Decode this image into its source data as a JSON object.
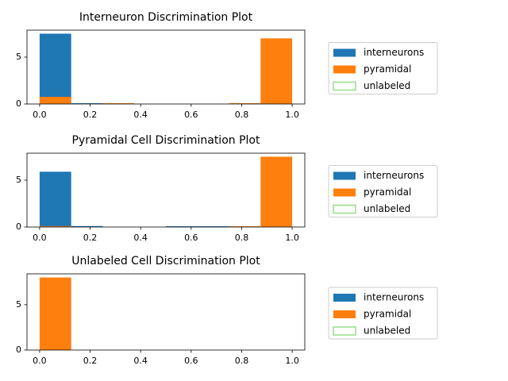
{
  "chart_data": [
    {
      "type": "histogram",
      "title": "Interneuron Discrimination Plot",
      "bins": [
        0,
        0.125,
        0.25,
        0.375,
        0.5,
        0.625,
        0.75,
        0.875,
        1
      ],
      "series": [
        {
          "name": "interneurons",
          "color": "#1f77b4",
          "values": [
            7.5,
            0.08,
            0,
            0,
            0,
            0,
            0,
            0
          ]
        },
        {
          "name": "pyramidal",
          "color": "#ff7f0e",
          "values": [
            0.76,
            0,
            0.08,
            0,
            0,
            0,
            0.08,
            7
          ]
        },
        {
          "name": "unlabeled",
          "color": "#98df8a",
          "values": [
            0,
            0,
            0,
            0,
            0,
            0,
            0,
            0
          ]
        }
      ],
      "xlim": [
        -0.05,
        1.05
      ],
      "ylim": [
        0,
        7.875
      ],
      "xticks": [
        {
          "value": 0,
          "label": "0.0"
        },
        0.2,
        0.4,
        0.6,
        0.8,
        {
          "value": 1,
          "label": "1.0"
        }
      ],
      "yticks": [
        0,
        5
      ],
      "legend": "right"
    },
    {
      "type": "histogram",
      "title": "Pyramidal Cell Discrimination Plot",
      "bins": [
        0,
        0.125,
        0.25,
        0.375,
        0.5,
        0.625,
        0.75,
        0.875,
        1
      ],
      "series": [
        {
          "name": "interneurons",
          "color": "#1f77b4",
          "values": [
            5.9,
            0.1,
            0,
            0,
            0.08,
            0.08,
            0,
            0
          ]
        },
        {
          "name": "pyramidal",
          "color": "#ff7f0e",
          "values": [
            0.1,
            0,
            0,
            0,
            0,
            0,
            0.08,
            7.5
          ]
        },
        {
          "name": "unlabeled",
          "color": "#98df8a",
          "values": [
            0,
            0,
            0,
            0,
            0,
            0,
            0,
            0
          ]
        }
      ],
      "xlim": [
        -0.05,
        1.05
      ],
      "ylim": [
        0,
        7.875
      ],
      "xticks": [
        {
          "value": 0,
          "label": "0.0"
        },
        0.2,
        0.4,
        0.6,
        0.8,
        {
          "value": 1,
          "label": "1.0"
        }
      ],
      "yticks": [
        0,
        5
      ],
      "legend": "right"
    },
    {
      "type": "histogram",
      "title": "Unlabeled Cell Discrimination Plot",
      "bins": [
        0,
        0.125,
        0.25,
        0.375,
        0.5,
        0.625,
        0.75,
        0.875,
        1
      ],
      "series": [
        {
          "name": "interneurons",
          "color": "#1f77b4",
          "values": [
            0,
            0,
            0,
            0,
            0,
            0,
            0,
            0
          ]
        },
        {
          "name": "pyramidal",
          "color": "#ff7f0e",
          "values": [
            8,
            0,
            0,
            0,
            0,
            0,
            0,
            0
          ]
        },
        {
          "name": "unlabeled",
          "color": "#98df8a",
          "values": [
            0,
            0,
            0,
            0,
            0,
            0,
            0,
            0
          ]
        }
      ],
      "xlim": [
        -0.05,
        1.05
      ],
      "ylim": [
        0,
        8.4
      ],
      "xticks": [
        {
          "value": 0,
          "label": "0.0"
        },
        0.2,
        0.4,
        0.6,
        0.8,
        {
          "value": 1,
          "label": "1.0"
        }
      ],
      "yticks": [
        0,
        5
      ],
      "legend": "right"
    }
  ]
}
